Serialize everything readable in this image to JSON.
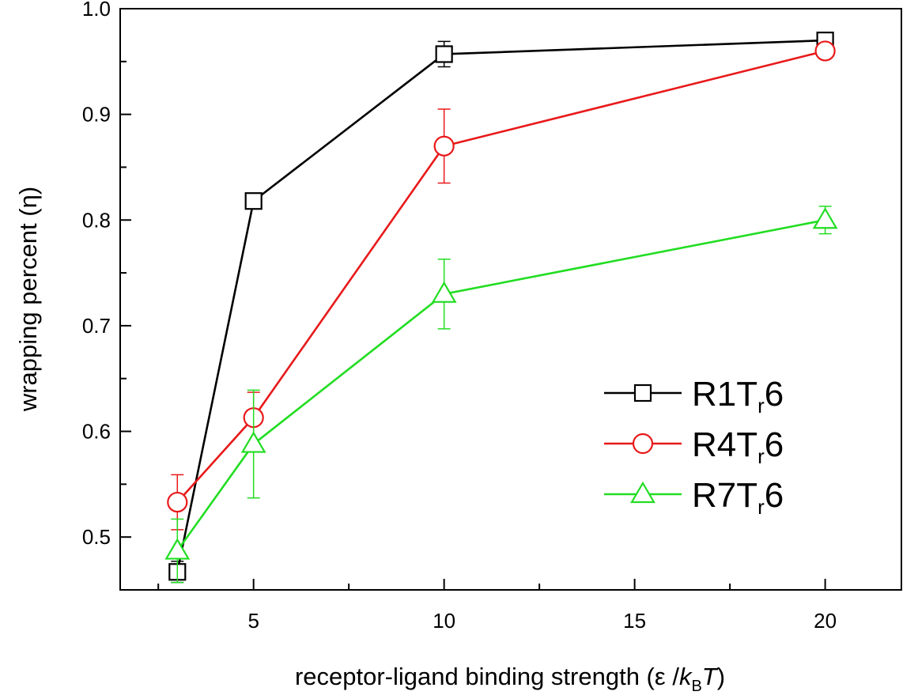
{
  "chart_data": {
    "type": "line",
    "title": "",
    "xlabel": {
      "prefix": "receptor-ligand binding strength (",
      "epsilon": "ε",
      "slash": " /",
      "k": "k",
      "k_sub": "B",
      "T": "T",
      "suffix": ")"
    },
    "ylabel": "wrapping percent (η)",
    "xlim": [
      1.5,
      22
    ],
    "ylim": [
      0.45,
      1.0
    ],
    "x_ticks": [
      5,
      10,
      15,
      20
    ],
    "x_tick_labels": [
      "5",
      "10",
      "15",
      "20"
    ],
    "x_minor_ticks": [
      2.5,
      7.5,
      12.5,
      17.5
    ],
    "y_ticks": [
      0.5,
      0.6,
      0.7,
      0.8,
      0.9,
      1.0
    ],
    "y_tick_labels": [
      "0.5",
      "0.6",
      "0.7",
      "0.8",
      "0.9",
      "1.0"
    ],
    "y_minor_ticks": [
      0.55,
      0.65,
      0.75,
      0.85,
      0.95
    ],
    "grid": false,
    "legend_position": "right",
    "series": [
      {
        "name": "R1Tr6",
        "label_main": "R1T",
        "label_sub": "r",
        "label_end": "6",
        "color": "#000000",
        "marker": "square",
        "x": [
          3,
          5,
          10,
          20
        ],
        "y": [
          0.467,
          0.818,
          0.957,
          0.97
        ],
        "err": [
          0.01,
          0.0,
          0.012,
          0.005
        ]
      },
      {
        "name": "R4Tr6",
        "label_main": "R4T",
        "label_sub": "r",
        "label_end": "6",
        "color": "#e8191a",
        "marker": "circle",
        "x": [
          3,
          5,
          10,
          20
        ],
        "y": [
          0.533,
          0.613,
          0.87,
          0.96
        ],
        "err": [
          0.026,
          0.024,
          0.035,
          0.007
        ]
      },
      {
        "name": "R7Tr6",
        "label_main": "R7T",
        "label_sub": "r",
        "label_end": "6",
        "color": "#22dd22",
        "marker": "triangle",
        "x": [
          3,
          5,
          10,
          20
        ],
        "y": [
          0.487,
          0.588,
          0.73,
          0.8
        ],
        "err": [
          0.03,
          0.051,
          0.033,
          0.013
        ]
      }
    ]
  }
}
